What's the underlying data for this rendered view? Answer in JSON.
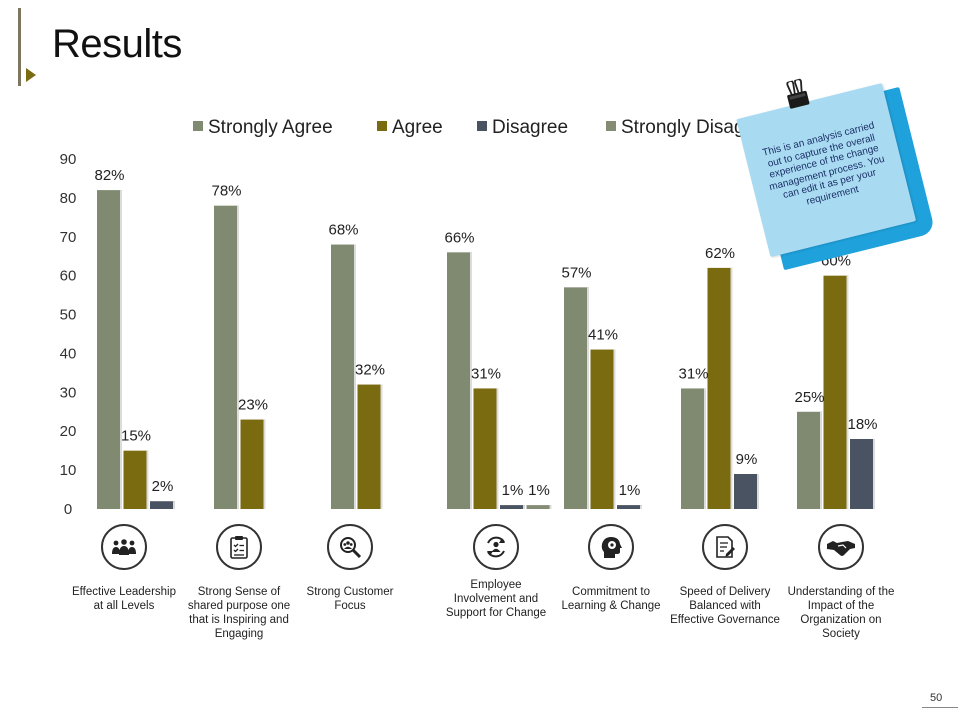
{
  "page": {
    "title": "Results",
    "page_number": "50"
  },
  "colors": {
    "strongly_agree": "#7f8a71",
    "agree": "#7a6a10",
    "disagree": "#4a5362",
    "strongly_disagree": "#848c74",
    "accent": "#7a6a12",
    "note": "#a8dbf2",
    "note_edge": "#1fa1dc"
  },
  "note": {
    "text": "This is an analysis carried out to capture the overall experience of the change management process. You can edit it as per your requirement"
  },
  "categories_info": [
    {
      "label": "Effective Leadership at all Levels",
      "icon": "team-icon"
    },
    {
      "label": "Strong Sense of shared purpose one that is Inspiring and Engaging",
      "icon": "checklist-icon"
    },
    {
      "label": "Strong Customer Focus",
      "icon": "magnifier-people-icon"
    },
    {
      "label": "Employee Involvement and Support for Change",
      "icon": "person-cycle-icon"
    },
    {
      "label": "Commitment to Learning & Change",
      "icon": "head-gear-icon"
    },
    {
      "label": "Speed of Delivery Balanced with Effective Governance",
      "icon": "document-edit-icon"
    },
    {
      "label": "Understanding of the Impact of the Organization on Society",
      "icon": "handshake-icon"
    }
  ],
  "chart_data": {
    "type": "bar",
    "title": "",
    "xlabel": "",
    "ylabel": "",
    "ylim": [
      0,
      90
    ],
    "yticks": [
      0,
      10,
      20,
      30,
      40,
      50,
      60,
      70,
      80,
      90
    ],
    "grid": false,
    "legend_position": "top",
    "categories": [
      "Effective Leadership at all Levels",
      "Strong Sense of shared purpose one that is Inspiring and Engaging",
      "Strong Customer Focus",
      "Employee Involvement and Support for Change",
      "Commitment to Learning & Change",
      "Speed of Delivery Balanced with Effective Governance",
      "Understanding of the Impact of the Organization on Society"
    ],
    "series": [
      {
        "name": "Strongly Agree",
        "values": [
          82,
          78,
          68,
          66,
          57,
          31,
          25
        ],
        "labels": [
          "82%",
          "78%",
          "68%",
          "66%",
          "57%",
          "31%",
          "25%"
        ]
      },
      {
        "name": "Agree",
        "values": [
          15,
          23,
          32,
          31,
          41,
          62,
          60
        ],
        "labels": [
          "15%",
          "23%",
          "32%",
          "31%",
          "41%",
          "62%",
          "60%"
        ]
      },
      {
        "name": "Disagree",
        "values": [
          2,
          null,
          null,
          1,
          1,
          9,
          18
        ],
        "labels": [
          "2%",
          null,
          null,
          "1%",
          "1%",
          "9%",
          "18%"
        ]
      },
      {
        "name": "Strongly Disagree",
        "values": [
          null,
          null,
          null,
          1,
          null,
          null,
          null
        ],
        "labels": [
          null,
          null,
          null,
          "1%",
          null,
          null,
          null
        ]
      }
    ]
  }
}
